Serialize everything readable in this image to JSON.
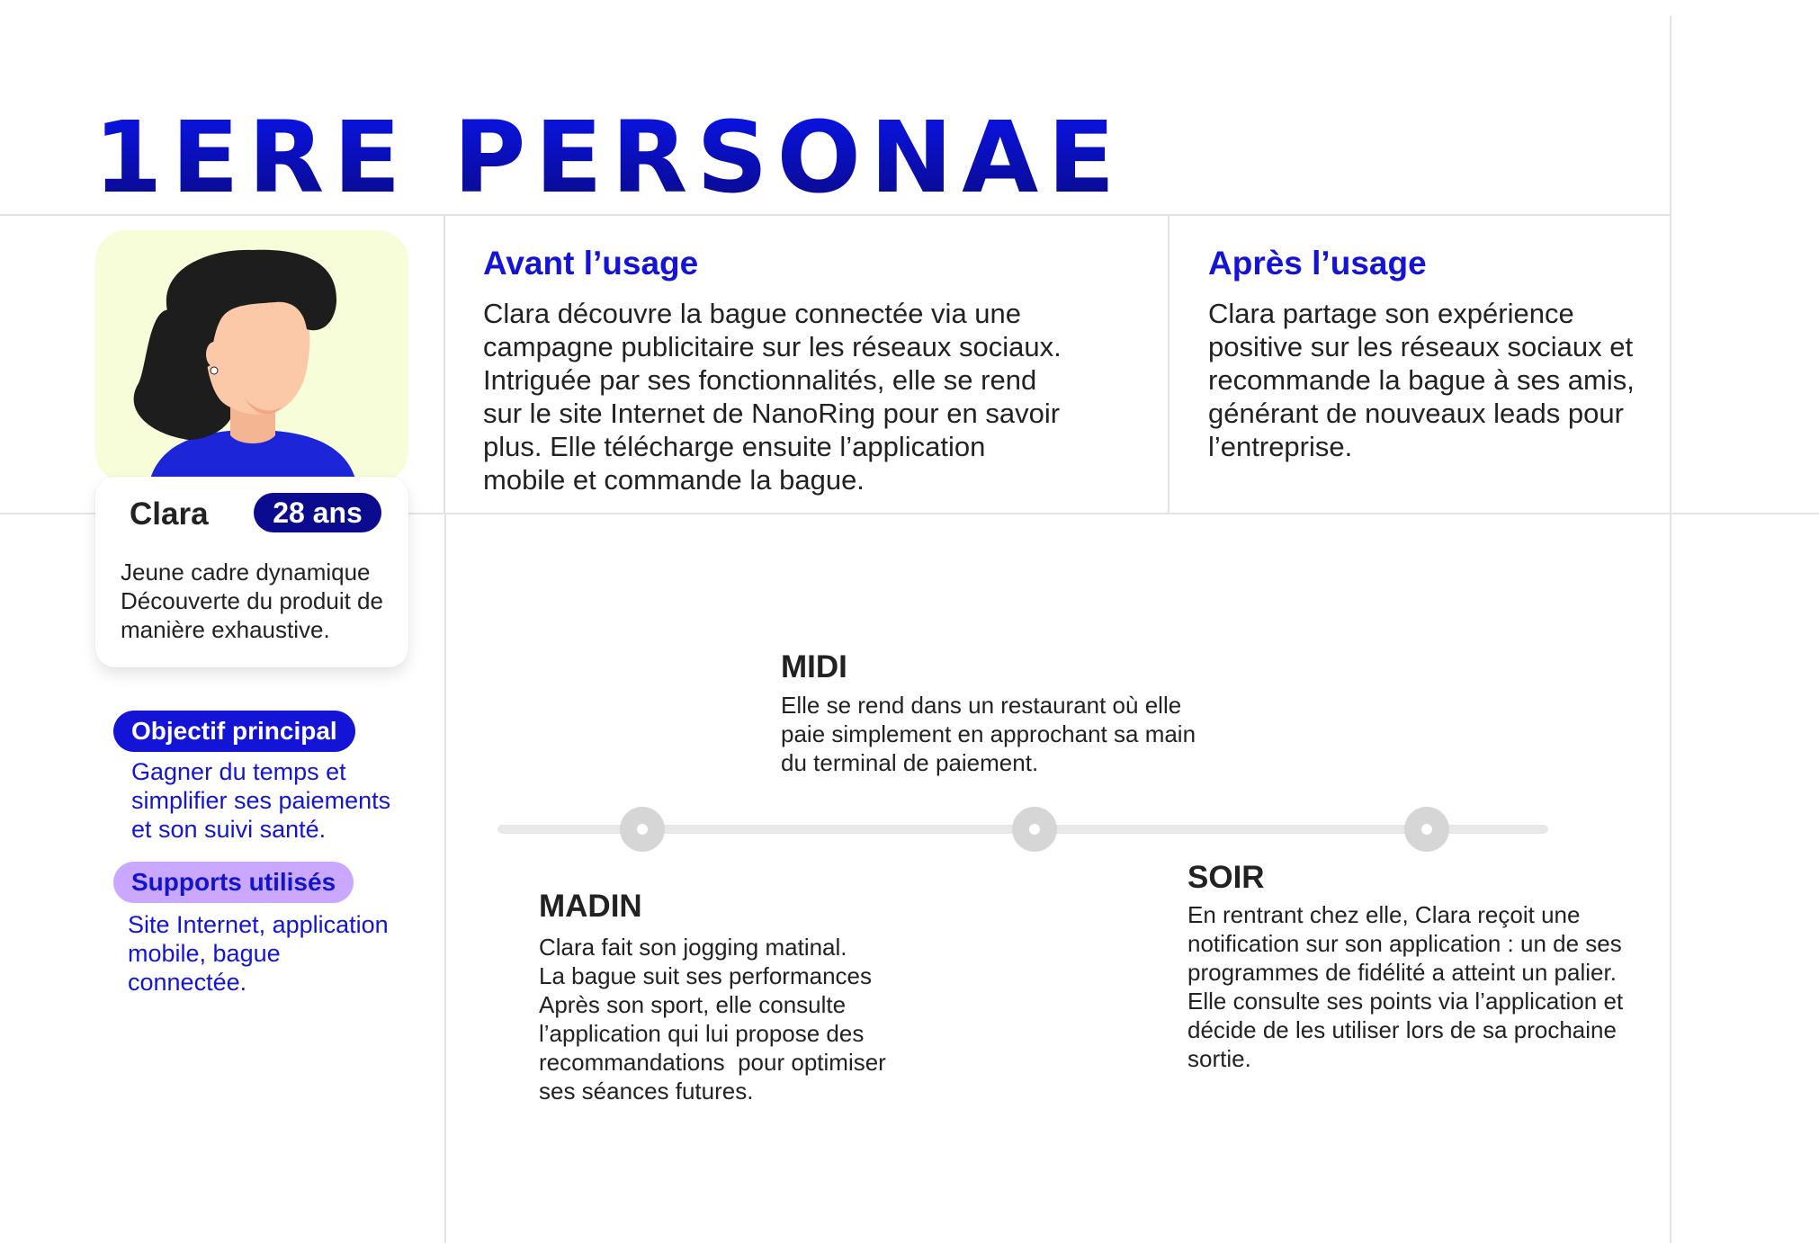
{
  "page": {
    "title": "1ERE PERSONAE"
  },
  "persona": {
    "name": "Clara",
    "age": "28 ans",
    "description": [
      "Jeune cadre dynamique",
      "Découverte du produit de",
      "manière exhaustive."
    ],
    "avatar_icon": "woman-avatar-icon"
  },
  "objectif": {
    "label": "Objectif principal",
    "text": [
      "Gagner du temps et",
      "simplifier ses paiements",
      "et son suivi santé."
    ]
  },
  "supports": {
    "label": "Supports utilisés",
    "text": [
      "Site Internet, application",
      "mobile, bague",
      "connectée."
    ]
  },
  "avant": {
    "heading": "Avant l’usage",
    "lines": [
      "Clara découvre la bague connectée via une",
      "campagne publicitaire sur les réseaux sociaux.",
      "Intriguée par ses fonctionnalités, elle se rend",
      "sur le site Internet de NanoRing pour en savoir",
      "plus. Elle télécharge ensuite l’application",
      "mobile et commande la bague."
    ]
  },
  "apres": {
    "heading": "Après l’usage",
    "lines": [
      "Clara partage son expérience",
      "positive sur les réseaux sociaux et",
      "recommande la bague à ses amis,",
      "générant de nouveaux leads pour",
      "l’entreprise."
    ]
  },
  "timeline": {
    "midi": {
      "title": "MIDI",
      "lines": [
        "Elle se rend dans un restaurant où elle",
        "paie simplement en approchant sa main",
        "du terminal de paiement."
      ]
    },
    "madin": {
      "title": "MADIN",
      "lines": [
        "Clara fait son jogging matinal.",
        "La bague suit ses performances",
        "Après son sport, elle consulte",
        "l’application qui lui propose des",
        "recommandations  pour optimiser",
        "ses séances futures."
      ]
    },
    "soir": {
      "title": "SOIR",
      "lines": [
        "En rentrant chez elle, Clara reçoit une",
        "notification sur son application : un de ses",
        "programmes de fidélité a atteint un palier.",
        "Elle consulte ses points via l’application et",
        "décide de les utiliser lors de sa prochaine",
        "sortie."
      ]
    }
  },
  "colors": {
    "accent_blue": "#1414d6",
    "navy": "#0b0b8f",
    "lavender": "#caa8ff",
    "avatar_bg": "#f7fdd8"
  }
}
